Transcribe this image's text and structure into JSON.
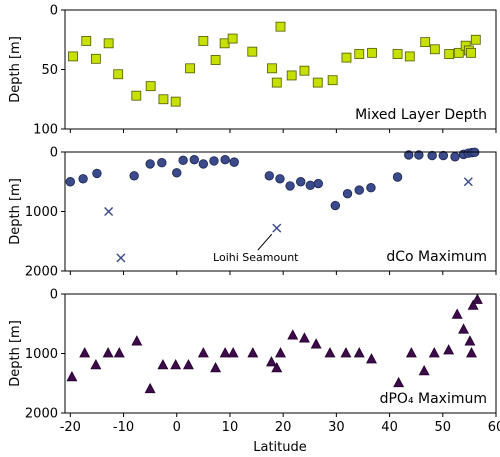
{
  "chart_data": {
    "type": "scatter",
    "xlabel": "Latitude",
    "xlim": [
      -21,
      60
    ],
    "xticks": [
      -20,
      -10,
      0,
      10,
      20,
      30,
      40,
      50,
      60
    ],
    "panels": [
      {
        "id": "mld",
        "label": "Mixed Layer Depth",
        "ylabel": "Depth [m]",
        "ylim": [
          100,
          0
        ],
        "yticks": [
          0,
          50,
          100
        ],
        "series": [
          {
            "marker": "square",
            "color": "#c8e000",
            "stroke": "#4d5a00",
            "points": [
              [
                -19.5,
                39
              ],
              [
                -17,
                26
              ],
              [
                -15.2,
                41
              ],
              [
                -12.8,
                28
              ],
              [
                -11,
                54
              ],
              [
                -7.6,
                72
              ],
              [
                -4.9,
                64
              ],
              [
                -2.5,
                75
              ],
              [
                -0.2,
                77
              ],
              [
                2.5,
                49
              ],
              [
                5,
                26
              ],
              [
                7.3,
                42
              ],
              [
                9,
                28
              ],
              [
                10.5,
                24
              ],
              [
                14.2,
                35
              ],
              [
                17.9,
                49
              ],
              [
                18.8,
                61
              ],
              [
                19.5,
                14
              ],
              [
                21.6,
                55
              ],
              [
                24,
                51
              ],
              [
                26.5,
                61
              ],
              [
                29.3,
                59
              ],
              [
                31.9,
                40
              ],
              [
                34.3,
                37
              ],
              [
                36.7,
                36
              ],
              [
                41.5,
                37
              ],
              [
                43.8,
                39
              ],
              [
                46.7,
                27
              ],
              [
                48.5,
                33
              ],
              [
                51.2,
                37
              ],
              [
                53,
                36
              ],
              [
                54.3,
                30
              ],
              [
                54.9,
                34
              ],
              [
                55.3,
                36
              ],
              [
                56.2,
                25
              ]
            ]
          }
        ]
      },
      {
        "id": "dco",
        "label": "dCo Maximum",
        "ylabel": "Depth [m]",
        "ylim": [
          2000,
          0
        ],
        "yticks": [
          0,
          1000,
          2000
        ],
        "series": [
          {
            "marker": "circle",
            "color": "#3a4a8a",
            "stroke": "#1a2550",
            "points": [
              [
                -20,
                500
              ],
              [
                -17.6,
                450
              ],
              [
                -15,
                360
              ],
              [
                -8,
                400
              ],
              [
                -5,
                200
              ],
              [
                -2.8,
                180
              ],
              [
                0,
                350
              ],
              [
                1.2,
                140
              ],
              [
                3.3,
                130
              ],
              [
                5,
                200
              ],
              [
                7,
                150
              ],
              [
                9.1,
                130
              ],
              [
                10.8,
                170
              ],
              [
                17.4,
                400
              ],
              [
                19.4,
                450
              ],
              [
                21.3,
                570
              ],
              [
                23.3,
                500
              ],
              [
                25.1,
                560
              ],
              [
                26.6,
                530
              ],
              [
                29.8,
                900
              ],
              [
                32.1,
                700
              ],
              [
                34.3,
                640
              ],
              [
                36.5,
                600
              ],
              [
                41.5,
                420
              ],
              [
                43.6,
                50
              ],
              [
                45.5,
                50
              ],
              [
                48,
                60
              ],
              [
                50.1,
                60
              ],
              [
                52.3,
                80
              ],
              [
                53.9,
                40
              ],
              [
                54.8,
                20
              ],
              [
                55.5,
                10
              ],
              [
                56,
                5
              ]
            ]
          },
          {
            "marker": "x",
            "color": "#3a4a8a",
            "stroke": "#3a4a8a",
            "points": [
              [
                -12.8,
                1000
              ],
              [
                -10.5,
                1780
              ],
              [
                18.8,
                1280
              ],
              [
                54.8,
                500
              ]
            ]
          }
        ],
        "annotations": [
          {
            "text": "Loihi Seamount",
            "target": [
              18.8,
              1280
            ]
          }
        ]
      },
      {
        "id": "dpo4",
        "label": "dPO₄ Maximum",
        "ylabel": "Depth [m]",
        "ylim": [
          2000,
          0
        ],
        "yticks": [
          0,
          1000,
          2000
        ],
        "series": [
          {
            "marker": "triangle",
            "color": "#3d0a4a",
            "stroke": "#24002e",
            "points": [
              [
                -19.7,
                1400
              ],
              [
                -17.3,
                1000
              ],
              [
                -15.2,
                1200
              ],
              [
                -12.9,
                1000
              ],
              [
                -10.8,
                1000
              ],
              [
                -7.5,
                800
              ],
              [
                -5,
                1600
              ],
              [
                -2.6,
                1200
              ],
              [
                -0.2,
                1200
              ],
              [
                2.2,
                1200
              ],
              [
                5,
                1000
              ],
              [
                7.3,
                1250
              ],
              [
                9.1,
                1000
              ],
              [
                10.6,
                1000
              ],
              [
                14.3,
                1000
              ],
              [
                17.8,
                1150
              ],
              [
                18.8,
                1250
              ],
              [
                19.5,
                1000
              ],
              [
                21.8,
                700
              ],
              [
                24,
                750
              ],
              [
                26.2,
                850
              ],
              [
                28.8,
                1000
              ],
              [
                31.8,
                1000
              ],
              [
                34.3,
                1000
              ],
              [
                36.6,
                1100
              ],
              [
                41.7,
                1500
              ],
              [
                44.1,
                1000
              ],
              [
                46.5,
                1300
              ],
              [
                48.4,
                1000
              ],
              [
                51.1,
                950
              ],
              [
                52.7,
                350
              ],
              [
                53.9,
                600
              ],
              [
                55.1,
                800
              ],
              [
                55.4,
                1000
              ],
              [
                55.7,
                200
              ],
              [
                56.5,
                100
              ]
            ]
          }
        ]
      }
    ]
  }
}
